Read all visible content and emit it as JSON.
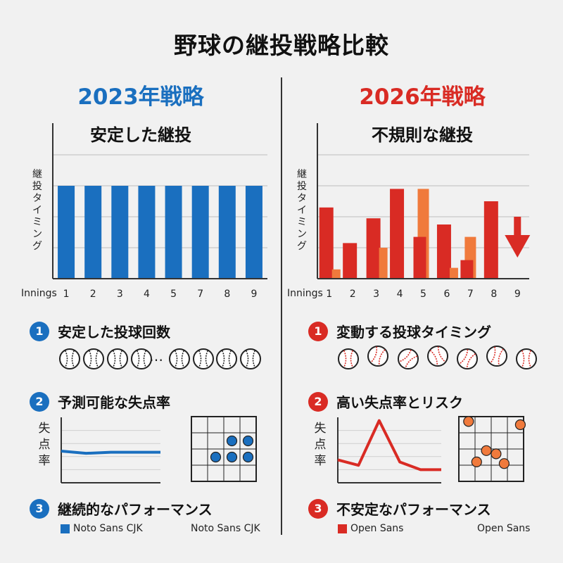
{
  "title": "野球の継投戦略比較",
  "colors": {
    "blue": "#1a6fbf",
    "red": "#d92b24",
    "orange": "#f07a3c",
    "grid": "#bdbdbd",
    "axis": "#333333"
  },
  "left": {
    "heading": "2023年戦略",
    "subtitle": "安定した継投",
    "ylabel": "継投タイミング",
    "x_axis_label": "Innings",
    "section1": {
      "num": "1",
      "label": "安定した投球回数",
      "ellipsis": "…"
    },
    "section2": {
      "num": "2",
      "label": "予測可能な失点率",
      "side_label": "失点率"
    },
    "section3": {
      "num": "3",
      "label": "継続的なパフォーマンス"
    },
    "legend": {
      "label": "Noto Sans CJK",
      "right_label": "Noto Sans CJK"
    }
  },
  "right": {
    "heading": "2026年戦略",
    "subtitle": "不規則な継投",
    "ylabel": "継投タイミング",
    "x_axis_label": "Innings",
    "section1": {
      "num": "1",
      "label": "変動する投球タイミング"
    },
    "section2": {
      "num": "2",
      "label": "高い失点率とリスク",
      "side_label": "失点率"
    },
    "section3": {
      "num": "3",
      "label": "不安定なパフォーマンス"
    },
    "legend": {
      "label": "Open Sans",
      "right_label": "Open Sans"
    }
  },
  "chart_data": [
    {
      "type": "bar",
      "categories": [
        "1",
        "2",
        "3",
        "4",
        "5",
        "7",
        "8",
        "9"
      ],
      "values": [
        6,
        6,
        6,
        6,
        6,
        6,
        6,
        6
      ],
      "ylabel": "継投タイミング",
      "xlabel": "Innings",
      "ylim": [
        0,
        8
      ],
      "grid": true,
      "color": "#1a6fbf"
    },
    {
      "type": "bar",
      "categories": [
        "1",
        "2",
        "3",
        "4",
        "5",
        "6",
        "7",
        "8",
        "9"
      ],
      "series": [
        {
          "values": [
            4.6,
            2.3,
            3.9,
            5.8,
            2.7,
            3.5,
            1.2,
            5.0,
            4.0
          ],
          "color": "#d92b24"
        },
        {
          "values": [
            0.6,
            0,
            2.0,
            0,
            5.8,
            0.7,
            2.7,
            0,
            0
          ],
          "color": "#f07a3c"
        }
      ],
      "ylabel": "継投タイミング",
      "xlabel": "Innings",
      "ylim": [
        0,
        8
      ],
      "grid": true,
      "annotation": "down-arrow at 9"
    },
    {
      "type": "line",
      "x": [
        1,
        2,
        3,
        4,
        5
      ],
      "y": [
        2.9,
        2.7,
        2.8,
        2.8,
        2.8
      ],
      "ylabel": "失点率",
      "ylim": [
        0,
        6
      ],
      "color": "#1a6fbf"
    },
    {
      "type": "scatter",
      "points": [
        [
          3,
          3
        ],
        [
          4,
          3
        ],
        [
          2,
          2
        ],
        [
          3,
          2
        ],
        [
          4,
          2
        ]
      ],
      "xlim": [
        0.5,
        4.5
      ],
      "ylim": [
        0.5,
        4.5
      ],
      "color": "#1a6fbf"
    },
    {
      "type": "line",
      "x": [
        1,
        2,
        3,
        4,
        5,
        6
      ],
      "y": [
        2.1,
        1.6,
        5.7,
        1.9,
        1.2,
        1.2
      ],
      "ylabel": "失点率",
      "ylim": [
        0,
        6
      ],
      "color": "#d92b24"
    },
    {
      "type": "scatter",
      "points": [
        [
          1.1,
          4.2
        ],
        [
          4.3,
          4.0
        ],
        [
          2.2,
          2.4
        ],
        [
          2.8,
          2.2
        ],
        [
          1.6,
          1.7
        ],
        [
          3.3,
          1.6
        ]
      ],
      "xlim": [
        0.5,
        4.5
      ],
      "ylim": [
        0.5,
        4.5
      ],
      "color": "#f07a3c"
    }
  ]
}
